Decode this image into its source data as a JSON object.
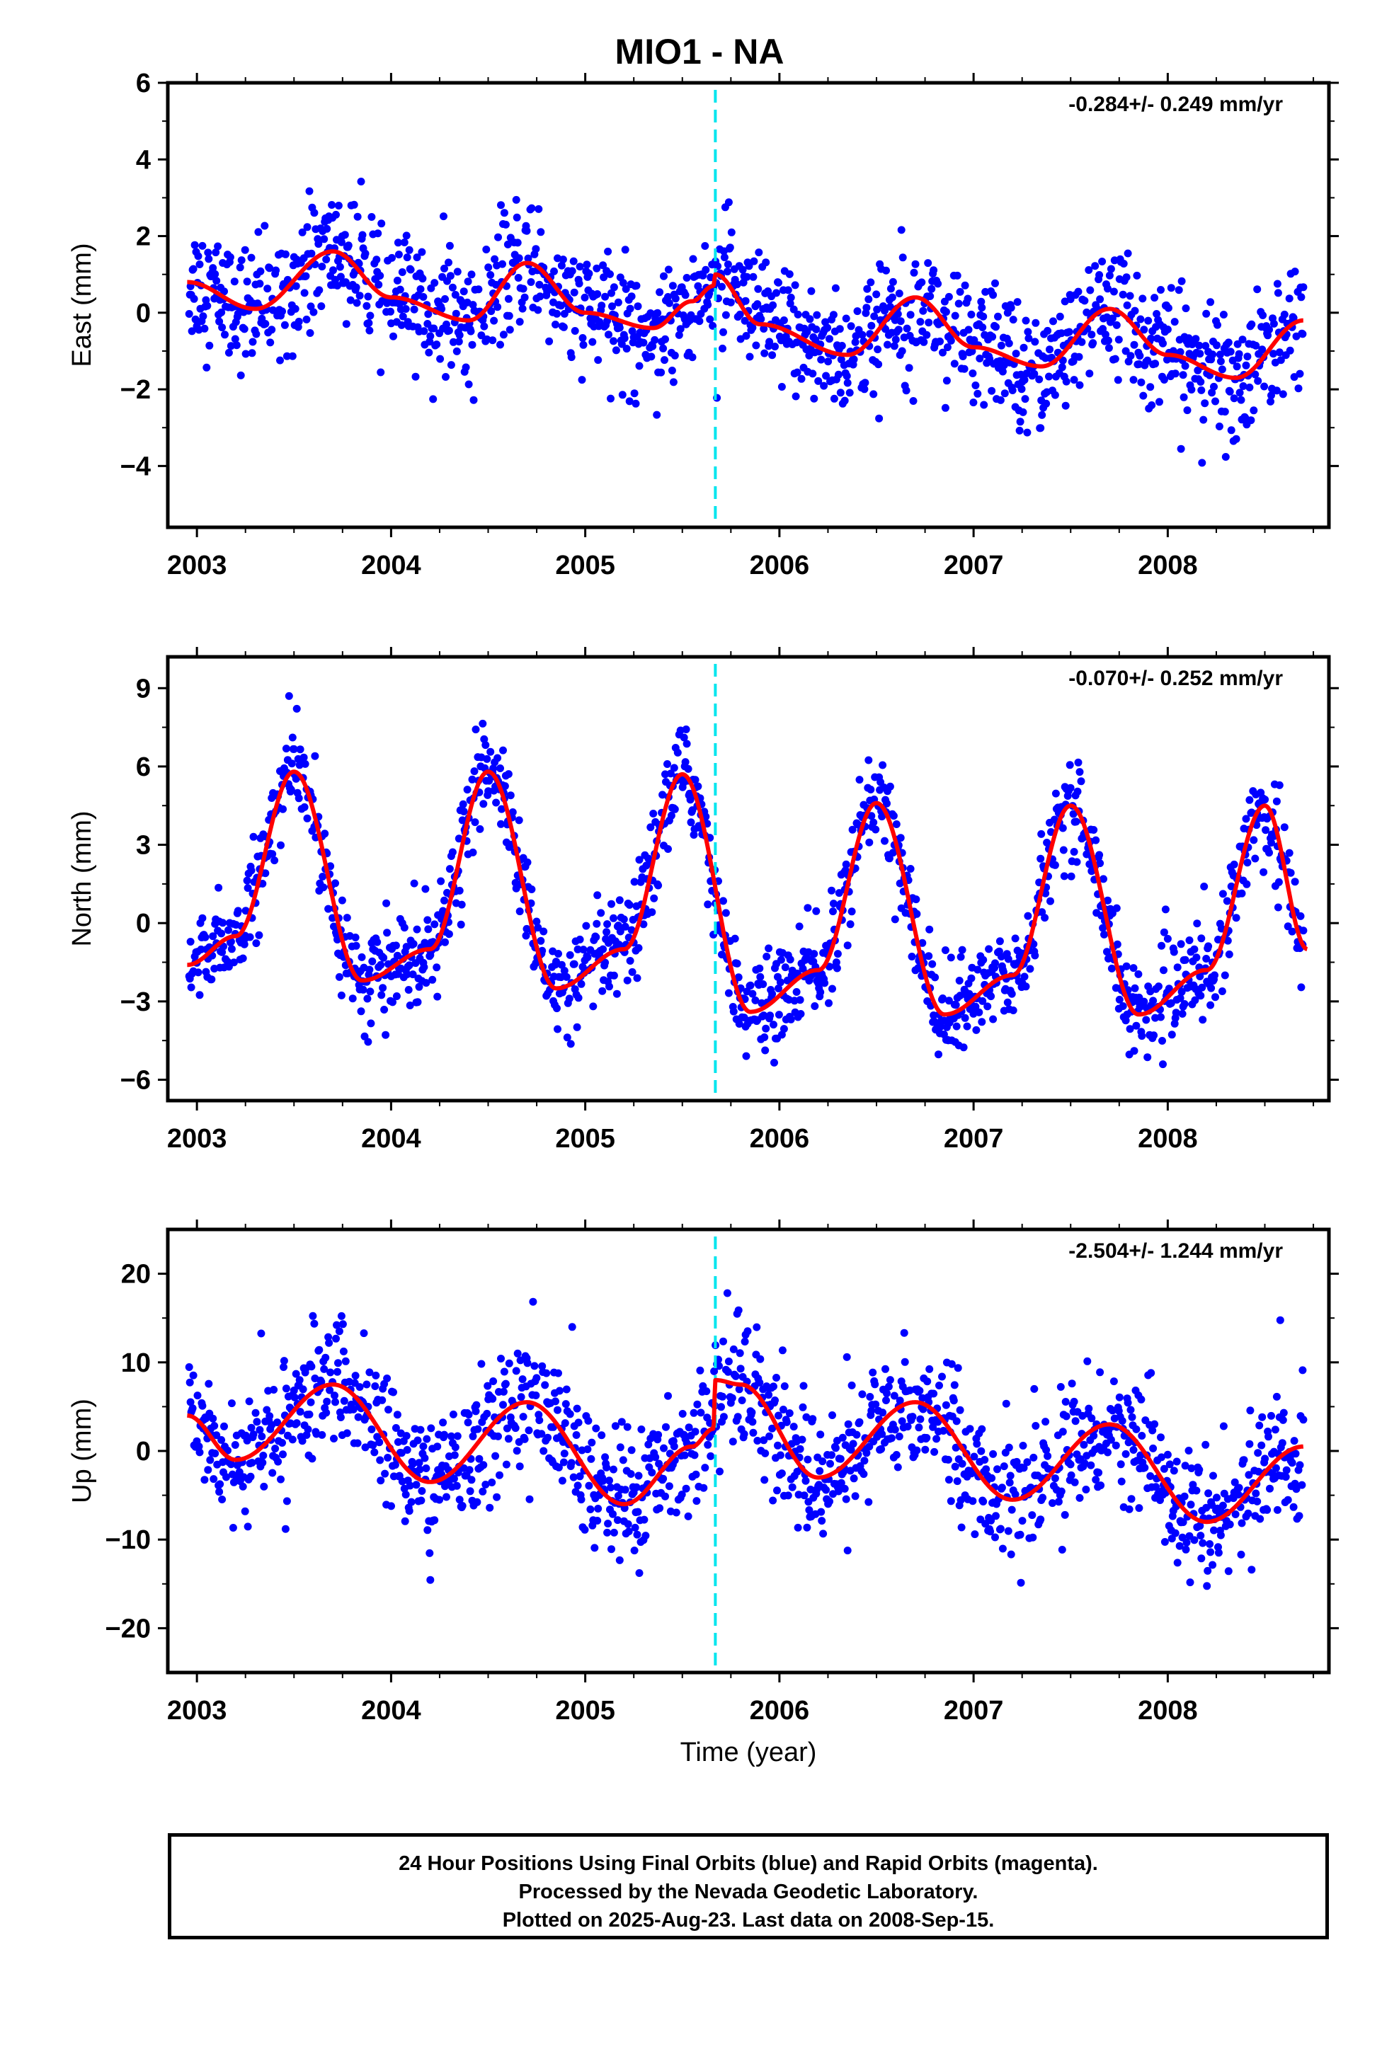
{
  "chart_data": {
    "type": "scatter",
    "title": "MIO1 - NA",
    "xlabel": "Time (year)",
    "x_range": [
      2002.85,
      2008.83
    ],
    "x_ticks": [
      "2003",
      "2004",
      "2005",
      "2006",
      "2007",
      "2008"
    ],
    "event_line_x": 2005.67,
    "colors": {
      "points": "#0000ff",
      "model": "#ff0000",
      "event": "#00e5ee"
    },
    "panels": [
      {
        "ylabel": "East (mm)",
        "ylim": [
          -5.6,
          6.0
        ],
        "yticks": [
          "6",
          "4",
          "2",
          "0",
          "−2",
          "−4"
        ],
        "ytick_values": [
          6,
          4,
          2,
          0,
          -2,
          -4
        ],
        "rate_text": "-0.284+/- 0.249 mm/yr",
        "trend_x": [
          2002.95,
          2003.3,
          2003.7,
          2004.0,
          2004.4,
          2004.7,
          2005.0,
          2005.35,
          2005.55,
          2005.66,
          2005.67,
          2005.9,
          2006.35,
          2006.7,
          2007.0,
          2007.35,
          2007.7,
          2008.0,
          2008.35,
          2008.7
        ],
        "trend_y": [
          0.8,
          0.1,
          1.6,
          0.4,
          -0.2,
          1.3,
          0.0,
          -0.4,
          0.3,
          0.7,
          1.0,
          -0.3,
          -1.1,
          0.4,
          -0.9,
          -1.4,
          0.1,
          -1.1,
          -1.7,
          -0.2
        ],
        "scatter_sd": 0.8
      },
      {
        "ylabel": "North (mm)",
        "ylim": [
          -6.8,
          10.2
        ],
        "yticks": [
          "9",
          "6",
          "3",
          "0",
          "−3",
          "−6"
        ],
        "ytick_values": [
          9,
          6,
          3,
          0,
          -3,
          -6
        ],
        "rate_text": "-0.070+/- 0.252 mm/yr",
        "trend_x": [
          2002.95,
          2003.2,
          2003.5,
          2003.85,
          2004.2,
          2004.5,
          2004.85,
          2005.2,
          2005.5,
          2005.85,
          2006.2,
          2006.5,
          2006.85,
          2007.2,
          2007.5,
          2007.85,
          2008.2,
          2008.5,
          2008.72
        ],
        "trend_y": [
          -1.6,
          -0.5,
          5.8,
          -2.2,
          -1.0,
          5.8,
          -2.5,
          -1.0,
          5.7,
          -3.4,
          -1.8,
          4.6,
          -3.5,
          -2.0,
          4.5,
          -3.5,
          -1.8,
          4.5,
          -1.0
        ],
        "scatter_sd": 0.9
      },
      {
        "ylabel": "Up (mm)",
        "ylim": [
          -25,
          25
        ],
        "yticks": [
          "20",
          "10",
          "0",
          "−10",
          "−20"
        ],
        "ytick_values": [
          20,
          10,
          0,
          -10,
          -20
        ],
        "rate_text": "-2.504+/- 1.244 mm/yr",
        "trend_x": [
          2002.95,
          2003.2,
          2003.7,
          2004.2,
          2004.7,
          2005.2,
          2005.55,
          2005.66,
          2005.67,
          2005.8,
          2006.2,
          2006.7,
          2007.2,
          2007.7,
          2008.2,
          2008.7
        ],
        "trend_y": [
          4.0,
          -1.0,
          7.5,
          -3.5,
          5.5,
          -6.0,
          0.5,
          2.5,
          8.0,
          7.5,
          -3.0,
          5.5,
          -5.5,
          3.0,
          -8.0,
          0.5
        ],
        "scatter_sd": 3.6
      }
    ]
  },
  "footer": {
    "line1": "24 Hour Positions Using Final Orbits (blue) and Rapid Orbits (magenta).",
    "line2": "Processed by the Nevada Geodetic Laboratory.",
    "line3": "Plotted on 2025-Aug-23. Last data on 2008-Sep-15."
  }
}
